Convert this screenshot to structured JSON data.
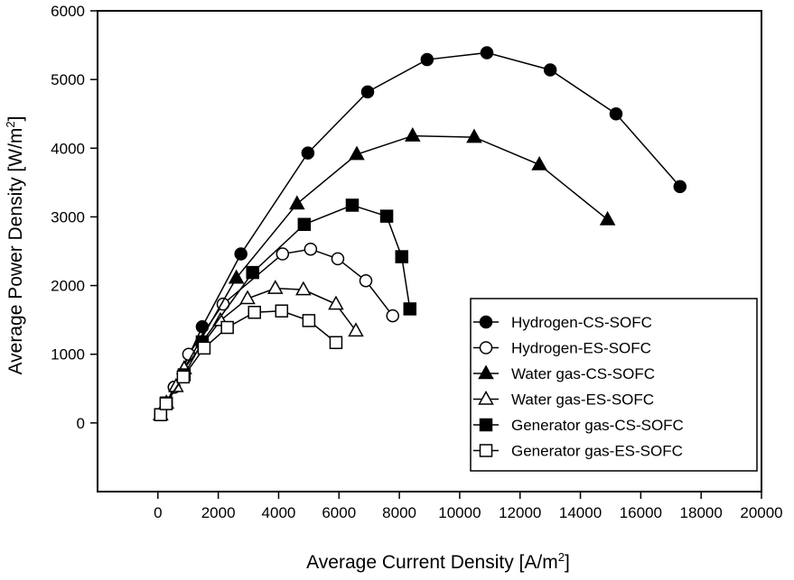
{
  "chart_data": {
    "type": "line",
    "title": "",
    "xlabel": "Average Current Density [A/m",
    "xlabel_sup": "2",
    "xlabel_end": "]",
    "ylabel": "Average Power Density [W/m",
    "ylabel_sup": "2",
    "ylabel_end": "]",
    "xlim": [
      -2000,
      20000
    ],
    "ylim": [
      -1000,
      6000
    ],
    "xticks": [
      0,
      2000,
      4000,
      6000,
      8000,
      10000,
      12000,
      14000,
      16000,
      18000,
      20000
    ],
    "yticks": [
      0,
      1000,
      2000,
      3000,
      4000,
      5000,
      6000
    ],
    "grid": false,
    "legend_position": "bottom-right",
    "series": [
      {
        "name": "Hydrogen-CS-SOFC",
        "marker": "circle",
        "filled": true,
        "x": [
          90,
          280,
          540,
          1470,
          2750,
          4970,
          6950,
          8920,
          10900,
          13000,
          15180,
          17300
        ],
        "y": [
          120,
          290,
          520,
          1400,
          2460,
          3930,
          4820,
          5290,
          5390,
          5140,
          4500,
          3440
        ]
      },
      {
        "name": "Hydrogen-ES-SOFC",
        "marker": "circle",
        "filled": false,
        "x": [
          90,
          280,
          540,
          1020,
          2160,
          4130,
          5060,
          5960,
          6890,
          7780
        ],
        "y": [
          120,
          290,
          520,
          1000,
          1730,
          2460,
          2530,
          2390,
          2070,
          1560
        ]
      },
      {
        "name": "Water gas-CS-SOFC",
        "marker": "triangle",
        "filled": true,
        "x": [
          90,
          280,
          870,
          2600,
          4610,
          6590,
          8440,
          10480,
          12640,
          14900
        ],
        "y": [
          120,
          290,
          790,
          2110,
          3190,
          3910,
          4180,
          4160,
          3760,
          2960
        ]
      },
      {
        "name": "Water gas-ES-SOFC",
        "marker": "triangle",
        "filled": false,
        "x": [
          90,
          280,
          600,
          870,
          2070,
          2970,
          3890,
          4820,
          5900,
          6560
        ],
        "y": [
          120,
          290,
          530,
          790,
          1490,
          1810,
          1960,
          1940,
          1730,
          1340
        ]
      },
      {
        "name": "Generator gas-CS-SOFC",
        "marker": "square",
        "filled": true,
        "x": [
          90,
          280,
          870,
          1470,
          3140,
          4850,
          6440,
          7580,
          8080,
          8350
        ],
        "y": [
          120,
          290,
          700,
          1180,
          2190,
          2890,
          3170,
          3010,
          2420,
          1660
        ]
      },
      {
        "name": "Generator gas-ES-SOFC",
        "marker": "square",
        "filled": false,
        "x": [
          90,
          270,
          840,
          1530,
          2300,
          3200,
          4100,
          5000,
          5900
        ],
        "y": [
          120,
          280,
          670,
          1090,
          1390,
          1610,
          1630,
          1490,
          1170
        ]
      }
    ]
  }
}
